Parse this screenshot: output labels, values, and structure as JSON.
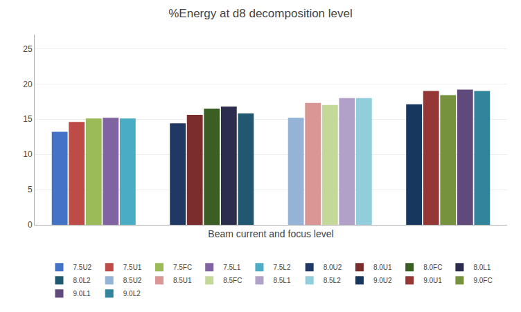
{
  "chart_data": {
    "type": "bar",
    "title": "%Energy at d8 decomposition level",
    "xlabel": "Beam current and focus level",
    "categories": [
      null,
      null,
      null,
      null
    ],
    "series": [
      {
        "name": "7.5U2",
        "color": "#4472C4",
        "values": [
          13.2,
          null,
          null,
          null
        ]
      },
      {
        "name": "7.5U1",
        "color": "#BE4B48",
        "values": [
          14.6,
          null,
          null,
          null
        ]
      },
      {
        "name": "7.5FC",
        "color": "#9BBB59",
        "values": [
          15.1,
          null,
          null,
          null
        ]
      },
      {
        "name": "7.5L1",
        "color": "#8064A2",
        "values": [
          15.2,
          null,
          null,
          null
        ]
      },
      {
        "name": "7.5L2",
        "color": "#4BACC6",
        "values": [
          15.1,
          null,
          null,
          null
        ]
      },
      {
        "name": "8.0U2",
        "color": "#1F3864",
        "values": [
          null,
          14.4,
          null,
          null
        ]
      },
      {
        "name": "8.0U1",
        "color": "#7B2C2C",
        "values": [
          null,
          15.6,
          null,
          null
        ]
      },
      {
        "name": "8.0FC",
        "color": "#3A5E23",
        "values": [
          null,
          16.5,
          null,
          null
        ]
      },
      {
        "name": "8.0L1",
        "color": "#2C2C4E",
        "values": [
          null,
          16.8,
          null,
          null
        ]
      },
      {
        "name": "8.0L2",
        "color": "#1F5870",
        "values": [
          null,
          15.8,
          null,
          null
        ]
      },
      {
        "name": "8.5U2",
        "color": "#95B3D7",
        "values": [
          null,
          null,
          15.2,
          null
        ]
      },
      {
        "name": "8.5U1",
        "color": "#D99694",
        "values": [
          null,
          null,
          17.3,
          null
        ]
      },
      {
        "name": "8.5FC",
        "color": "#C4D89A",
        "values": [
          null,
          null,
          17.0,
          null
        ]
      },
      {
        "name": "8.5L1",
        "color": "#B1A0C7",
        "values": [
          null,
          null,
          18.0,
          null
        ]
      },
      {
        "name": "8.5L2",
        "color": "#92CDDC",
        "values": [
          null,
          null,
          18.0,
          null
        ]
      },
      {
        "name": "9.0U2",
        "color": "#17375E",
        "values": [
          null,
          null,
          null,
          17.1
        ]
      },
      {
        "name": "9.0U1",
        "color": "#953735",
        "values": [
          null,
          null,
          null,
          19.0
        ]
      },
      {
        "name": "9.0FC",
        "color": "#76923C",
        "values": [
          null,
          null,
          null,
          18.4
        ]
      },
      {
        "name": "9.0L1",
        "color": "#604A7B",
        "values": [
          null,
          null,
          null,
          19.2
        ]
      },
      {
        "name": "9.0L2",
        "color": "#31849B",
        "values": [
          null,
          null,
          null,
          19.0
        ]
      }
    ],
    "ylim": [
      0,
      27
    ],
    "yticks": [
      0,
      5,
      10,
      15,
      20,
      25
    ],
    "grid": true,
    "legend": "bottom",
    "tick_labels": "y"
  }
}
